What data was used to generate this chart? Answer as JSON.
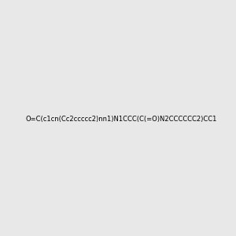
{
  "smiles": "O=C(c1cn(Cc2ccccc2)nn1)N1CCC(C(=O)N2CCCCCC2)CC1",
  "image_size": 300,
  "background_color": "#e8e8e8",
  "title": ""
}
